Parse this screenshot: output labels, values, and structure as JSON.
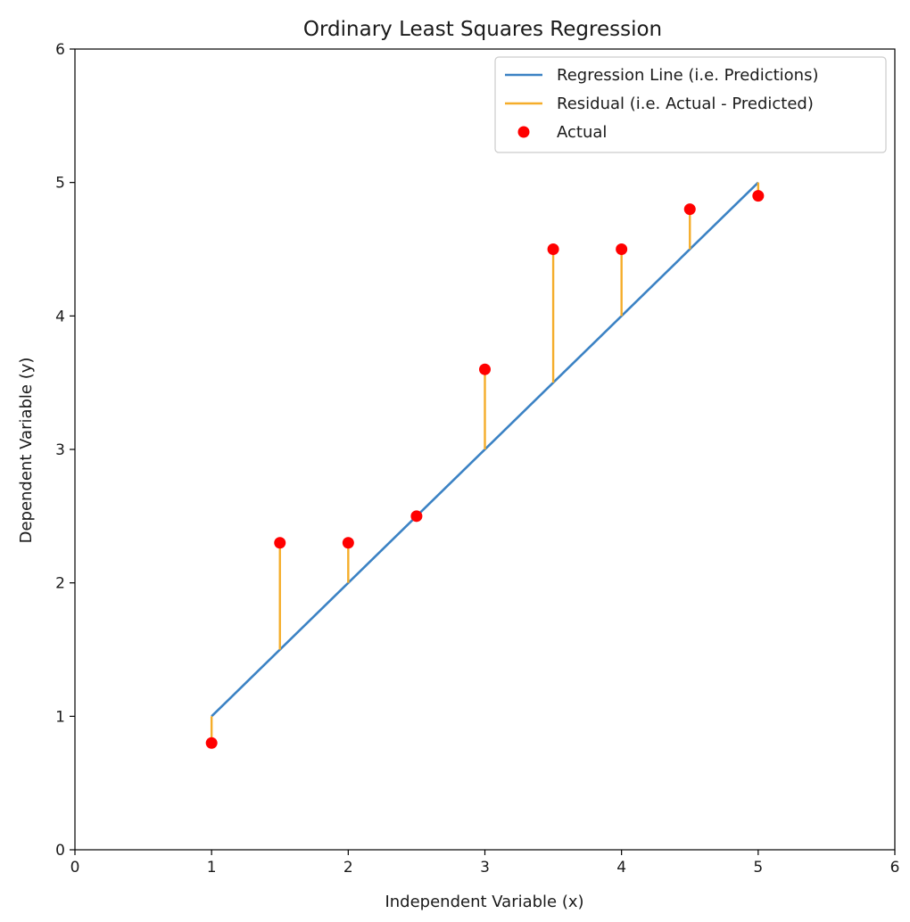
{
  "chart_data": {
    "type": "scatter",
    "title": "Ordinary Least Squares Regression",
    "xlabel": "Independent Variable (x)",
    "ylabel": "Dependent Variable (y)",
    "xlim": [
      0,
      6
    ],
    "ylim": [
      0,
      6
    ],
    "xticks": [
      "0",
      "1",
      "2",
      "3",
      "4",
      "5",
      "6"
    ],
    "yticks": [
      "0",
      "1",
      "2",
      "3",
      "4",
      "5",
      "6"
    ],
    "grid": false,
    "legend_position": "top-right",
    "series": [
      {
        "name": "Regression Line (i.e. Predictions)",
        "kind": "line",
        "color": "#3b82c4",
        "x": [
          1,
          5
        ],
        "y": [
          1,
          5
        ]
      },
      {
        "name": "Residual (i.e. Actual - Predicted)",
        "kind": "residuals",
        "color": "#f5ad2a",
        "x": [
          1,
          1.5,
          2,
          2.5,
          3,
          3.5,
          4,
          4.5,
          5
        ],
        "y_from": [
          1,
          1.5,
          2,
          2.5,
          3,
          3.5,
          4,
          4.5,
          5
        ],
        "y_to": [
          0.8,
          2.3,
          2.3,
          2.5,
          3.6,
          4.5,
          4.5,
          4.8,
          4.9
        ]
      },
      {
        "name": "Actual",
        "kind": "scatter",
        "color": "#ff0000",
        "x": [
          1,
          1.5,
          2,
          2.5,
          3,
          3.5,
          4,
          4.5,
          5
        ],
        "y": [
          0.8,
          2.3,
          2.3,
          2.5,
          3.6,
          4.5,
          4.5,
          4.8,
          4.9
        ]
      }
    ],
    "legend": [
      {
        "label": "Regression Line (i.e. Predictions)",
        "marker": "line",
        "color": "#3b82c4"
      },
      {
        "label": "Residual (i.e. Actual - Predicted)",
        "marker": "line",
        "color": "#f5ad2a"
      },
      {
        "label": "Actual",
        "marker": "dot",
        "color": "#ff0000"
      }
    ]
  }
}
